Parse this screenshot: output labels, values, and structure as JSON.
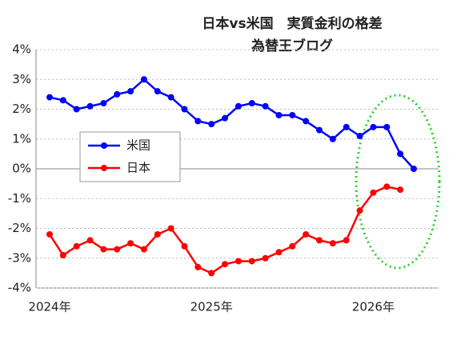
{
  "chart_data": {
    "type": "line",
    "title": "日本vs米国　実質金利の格差",
    "subtitle": "為替王ブログ",
    "categories": [
      "2024年",
      null,
      null,
      null,
      null,
      null,
      null,
      null,
      null,
      null,
      null,
      null,
      "2025年",
      null,
      null,
      null,
      null,
      null,
      null,
      null,
      null,
      null,
      null,
      null,
      "2026年",
      null,
      null,
      null
    ],
    "series": [
      {
        "name": "米国",
        "color": "#0000ff",
        "values": [
          2.4,
          2.3,
          2.0,
          2.1,
          2.2,
          2.5,
          2.6,
          3.0,
          2.6,
          2.4,
          2.0,
          1.6,
          1.5,
          1.7,
          2.1,
          2.2,
          2.1,
          1.8,
          1.8,
          1.6,
          1.3,
          1.0,
          1.4,
          1.1,
          1.4,
          1.4,
          0.5,
          0.0
        ]
      },
      {
        "name": "日本",
        "color": "#ff0000",
        "values": [
          -2.2,
          -2.9,
          -2.6,
          -2.4,
          -2.7,
          -2.7,
          -2.5,
          -2.7,
          -2.2,
          -2.0,
          -2.6,
          -3.3,
          -3.5,
          -3.2,
          -3.1,
          -3.1,
          -3.0,
          -2.8,
          -2.6,
          -2.2,
          -2.4,
          -2.5,
          -2.4,
          -1.4,
          -0.8,
          -0.6,
          -0.7,
          null
        ]
      }
    ],
    "ylim": [
      -4,
      4
    ],
    "yticks": [
      {
        "value": -4,
        "label": "-4%"
      },
      {
        "value": -3,
        "label": "-3%"
      },
      {
        "value": -2,
        "label": "-2%"
      },
      {
        "value": -1,
        "label": "-1%"
      },
      {
        "value": 0,
        "label": "0%"
      },
      {
        "value": 1,
        "label": "1%"
      },
      {
        "value": 2,
        "label": "2%"
      },
      {
        "value": 3,
        "label": "3%"
      },
      {
        "value": 4,
        "label": "4%"
      }
    ],
    "grid": true
  }
}
